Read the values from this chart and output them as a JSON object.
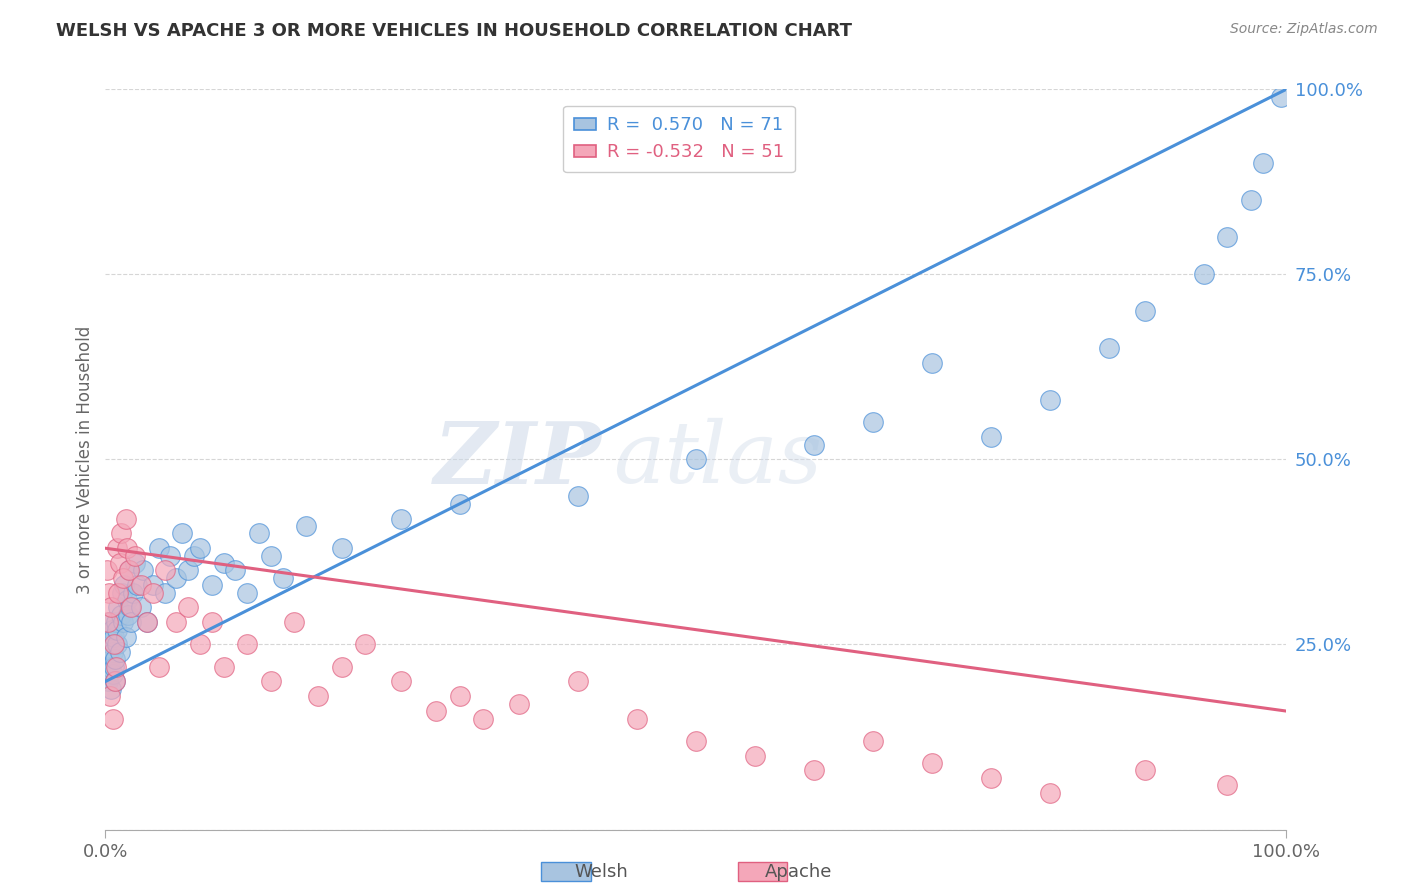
{
  "title": "WELSH VS APACHE 3 OR MORE VEHICLES IN HOUSEHOLD CORRELATION CHART",
  "source": "Source: ZipAtlas.com",
  "ylabel": "3 or more Vehicles in Household",
  "xlim": [
    0.0,
    100.0
  ],
  "ylim": [
    0.0,
    100.0
  ],
  "welsh_color": "#a8c4e0",
  "apache_color": "#f4a7b9",
  "welsh_line_color": "#4a90d9",
  "apache_line_color": "#e06080",
  "welsh_R": 0.57,
  "welsh_N": 71,
  "apache_R": -0.532,
  "apache_N": 51,
  "watermark_zip": "ZIP",
  "watermark_atlas": "atlas",
  "background_color": "#ffffff",
  "welsh_x": [
    0.1,
    0.15,
    0.2,
    0.25,
    0.3,
    0.35,
    0.4,
    0.45,
    0.5,
    0.55,
    0.6,
    0.65,
    0.7,
    0.75,
    0.8,
    0.85,
    0.9,
    0.95,
    1.0,
    1.1,
    1.2,
    1.3,
    1.4,
    1.5,
    1.6,
    1.7,
    1.8,
    1.9,
    2.0,
    2.1,
    2.2,
    2.3,
    2.5,
    2.7,
    3.0,
    3.2,
    3.5,
    4.0,
    4.5,
    5.0,
    5.5,
    6.0,
    6.5,
    7.0,
    7.5,
    8.0,
    9.0,
    10.0,
    11.0,
    12.0,
    13.0,
    14.0,
    15.0,
    17.0,
    20.0,
    25.0,
    30.0,
    40.0,
    50.0,
    60.0,
    65.0,
    70.0,
    75.0,
    80.0,
    85.0,
    88.0,
    93.0,
    95.0,
    97.0,
    98.0,
    99.5
  ],
  "welsh_y": [
    22.0,
    24.0,
    20.0,
    26.0,
    23.0,
    28.0,
    22.0,
    19.0,
    25.0,
    27.0,
    21.0,
    24.0,
    22.0,
    26.0,
    20.0,
    23.0,
    28.0,
    25.0,
    27.0,
    30.0,
    24.0,
    29.0,
    32.0,
    28.0,
    33.0,
    26.0,
    31.0,
    29.0,
    35.0,
    30.0,
    28.0,
    32.0,
    36.0,
    33.0,
    30.0,
    35.0,
    28.0,
    33.0,
    38.0,
    32.0,
    37.0,
    34.0,
    40.0,
    35.0,
    37.0,
    38.0,
    33.0,
    36.0,
    35.0,
    32.0,
    40.0,
    37.0,
    34.0,
    41.0,
    38.0,
    42.0,
    44.0,
    45.0,
    50.0,
    52.0,
    55.0,
    63.0,
    53.0,
    58.0,
    65.0,
    70.0,
    75.0,
    80.0,
    85.0,
    90.0,
    99.0
  ],
  "apache_x": [
    0.1,
    0.2,
    0.3,
    0.4,
    0.5,
    0.6,
    0.7,
    0.8,
    0.9,
    1.0,
    1.1,
    1.2,
    1.3,
    1.5,
    1.7,
    1.8,
    2.0,
    2.2,
    2.5,
    3.0,
    3.5,
    4.0,
    4.5,
    5.0,
    6.0,
    7.0,
    8.0,
    9.0,
    10.0,
    12.0,
    14.0,
    16.0,
    18.0,
    20.0,
    22.0,
    25.0,
    28.0,
    30.0,
    32.0,
    35.0,
    40.0,
    45.0,
    50.0,
    55.0,
    60.0,
    65.0,
    70.0,
    75.0,
    80.0,
    88.0,
    95.0
  ],
  "apache_y": [
    35.0,
    28.0,
    32.0,
    18.0,
    30.0,
    15.0,
    25.0,
    20.0,
    22.0,
    38.0,
    32.0,
    36.0,
    40.0,
    34.0,
    42.0,
    38.0,
    35.0,
    30.0,
    37.0,
    33.0,
    28.0,
    32.0,
    22.0,
    35.0,
    28.0,
    30.0,
    25.0,
    28.0,
    22.0,
    25.0,
    20.0,
    28.0,
    18.0,
    22.0,
    25.0,
    20.0,
    16.0,
    18.0,
    15.0,
    17.0,
    20.0,
    15.0,
    12.0,
    10.0,
    8.0,
    12.0,
    9.0,
    7.0,
    5.0,
    8.0,
    6.0
  ],
  "welsh_trend": [
    0.0,
    100.0
  ],
  "welsh_trend_y": [
    20.0,
    100.0
  ],
  "apache_trend": [
    0.0,
    100.0
  ],
  "apache_trend_y": [
    38.0,
    16.0
  ]
}
